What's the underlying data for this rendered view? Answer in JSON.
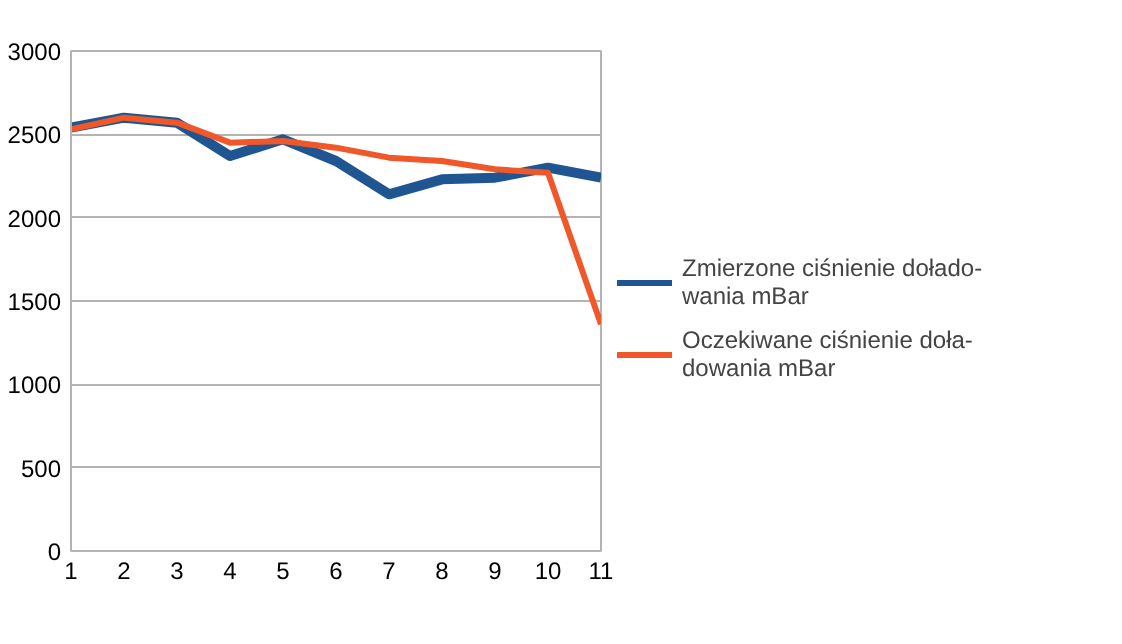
{
  "chart_data": {
    "type": "line",
    "x": [
      1,
      2,
      3,
      4,
      5,
      6,
      7,
      8,
      9,
      10,
      11
    ],
    "series": [
      {
        "name": "Zmierzone ciśnienie dołado-\nwania mBar",
        "color": "#1f5591",
        "values": [
          2540,
          2600,
          2570,
          2370,
          2470,
          2340,
          2140,
          2230,
          2240,
          2300,
          2240
        ]
      },
      {
        "name": "Oczekiwane ciśnienie doła-\ndowania mBar",
        "color": "#f0582a",
        "values": [
          2530,
          2600,
          2570,
          2450,
          2460,
          2420,
          2360,
          2340,
          2290,
          2270,
          1360
        ]
      }
    ],
    "xlim": [
      1,
      11
    ],
    "xticks": [
      1,
      2,
      3,
      4,
      5,
      6,
      7,
      8,
      9,
      10,
      11
    ],
    "ylim": [
      0,
      3000
    ],
    "yticks": [
      0,
      500,
      1000,
      1500,
      2000,
      2500,
      3000
    ],
    "grid": "y",
    "legend": "right",
    "marker": "none",
    "line_style": "solid"
  }
}
